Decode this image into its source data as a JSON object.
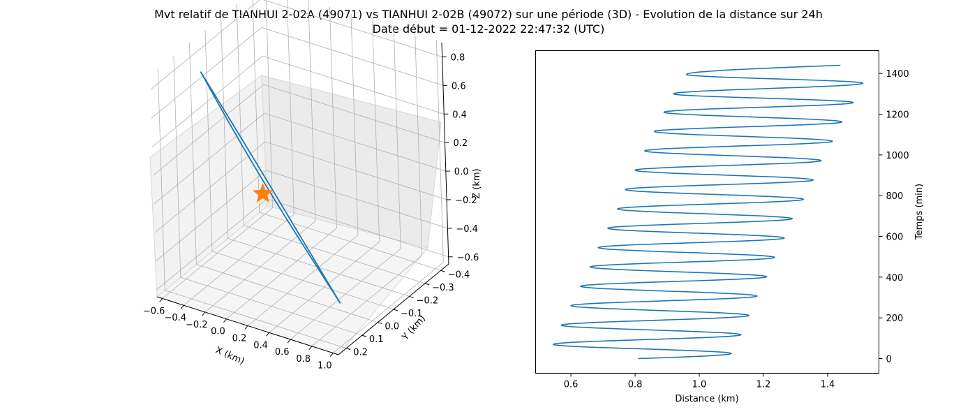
{
  "figure": {
    "title_line1": "Mvt relatif de TIANHUI 2-02A (49071) vs TIANHUI 2-02B (49072) sur une période (3D) - Evolution de la distance sur 24h",
    "title_line2": "Date début = 01-12-2022 22:47:32 (UTC)"
  },
  "chart_data": [
    {
      "type": "line3d",
      "xlabel": "X (km)",
      "ylabel": "Y (km)",
      "zlabel": "Z (km)",
      "xticks": [
        "−0.6",
        "−0.4",
        "−0.2",
        "0.0",
        "0.2",
        "0.4",
        "0.6",
        "0.8",
        "1.0"
      ],
      "yticks": [
        "−0.4",
        "−0.3",
        "−0.2",
        "−0.1",
        "0.0",
        "0.1",
        "0.2"
      ],
      "zticks": [
        "−0.6",
        "−0.4",
        "−0.2",
        "0.0",
        "0.2",
        "0.4",
        "0.6",
        "0.8"
      ],
      "xlim": [
        -0.65,
        1.05
      ],
      "ylim": [
        -0.45,
        0.25
      ],
      "zlim": [
        -0.65,
        0.9
      ],
      "line_color": "#1f77b4",
      "marker_color": "#ff7f0e",
      "marker": "star",
      "marker_position": {
        "x": 0.0,
        "y": 0.0,
        "z": 0.0
      },
      "trajectory_endpoints": [
        {
          "x": -0.4,
          "y": 0.1,
          "z": 0.85
        },
        {
          "x": 0.7,
          "y": 0.0,
          "z": -0.6
        }
      ],
      "grid": true
    },
    {
      "type": "line",
      "xlabel": "Distance (km)",
      "ylabel": "Temps (min)",
      "xticks": [
        "0.6",
        "0.8",
        "1.0",
        "1.2",
        "1.4"
      ],
      "yticks": [
        "0",
        "200",
        "400",
        "600",
        "800",
        "1000",
        "1200",
        "1400"
      ],
      "xlim": [
        0.49,
        1.56
      ],
      "ylim": [
        -72,
        1512
      ],
      "y_axis_side": "right",
      "line_color": "#1f77b4",
      "grid": false,
      "series": [
        {
          "t_start": 0,
          "t_end": 1440,
          "distance_start": 0.81,
          "distance_end": 1.44,
          "distance_minima": [
            {
              "t": 70,
              "d": 0.545
            },
            {
              "t": 164,
              "d": 0.57
            },
            {
              "t": 260,
              "d": 0.6
            },
            {
              "t": 355,
              "d": 0.63
            },
            {
              "t": 450,
              "d": 0.66
            },
            {
              "t": 545,
              "d": 0.685
            },
            {
              "t": 640,
              "d": 0.715
            },
            {
              "t": 735,
              "d": 0.745
            },
            {
              "t": 830,
              "d": 0.77
            },
            {
              "t": 925,
              "d": 0.8
            },
            {
              "t": 1020,
              "d": 0.83
            },
            {
              "t": 1115,
              "d": 0.86
            },
            {
              "t": 1210,
              "d": 0.89
            },
            {
              "t": 1300,
              "d": 0.92
            },
            {
              "t": 1395,
              "d": 0.96
            }
          ],
          "distance_maxima": [
            {
              "t": 25,
              "d": 1.1
            },
            {
              "t": 117,
              "d": 1.13
            },
            {
              "t": 212,
              "d": 1.155
            },
            {
              "t": 307,
              "d": 1.18
            },
            {
              "t": 402,
              "d": 1.21
            },
            {
              "t": 497,
              "d": 1.235
            },
            {
              "t": 592,
              "d": 1.265
            },
            {
              "t": 687,
              "d": 1.29
            },
            {
              "t": 782,
              "d": 1.325
            },
            {
              "t": 877,
              "d": 1.355
            },
            {
              "t": 972,
              "d": 1.38
            },
            {
              "t": 1067,
              "d": 1.415
            },
            {
              "t": 1162,
              "d": 1.445
            },
            {
              "t": 1257,
              "d": 1.48
            },
            {
              "t": 1352,
              "d": 1.51
            }
          ]
        }
      ]
    }
  ]
}
